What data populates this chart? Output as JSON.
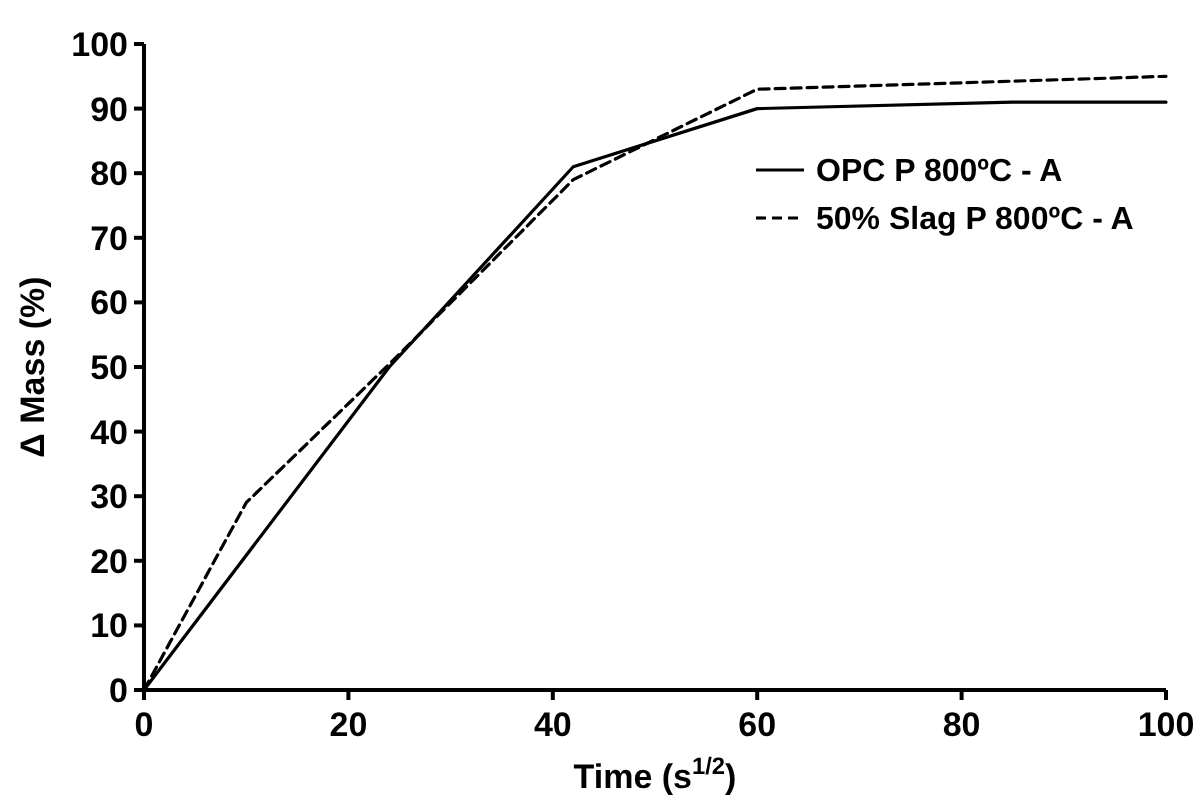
{
  "chart_data": {
    "type": "line",
    "xlabel": "Time (s$^{1/2}$)",
    "ylabel": "Δ Mass (%)",
    "xlim": [
      0,
      100
    ],
    "xticks": [
      0,
      20,
      40,
      60,
      80,
      100
    ],
    "ylim": [
      0,
      100
    ],
    "yticks": [
      0,
      10,
      20,
      30,
      40,
      50,
      60,
      70,
      80,
      90,
      100
    ],
    "grid": false,
    "legend": "top right",
    "marker": "none",
    "series": [
      {
        "name": "OPC P 800ºC - A",
        "color": "#000000",
        "line_style": "solid",
        "x": [
          0,
          24,
          42,
          60,
          85,
          100
        ],
        "values": [
          0,
          50,
          81,
          90,
          91,
          91
        ]
      },
      {
        "name": "50% Slag P 800ºC - A",
        "color": "#000000",
        "line_style": "dashed",
        "x": [
          0,
          10,
          25,
          42,
          60,
          100
        ],
        "values": [
          0,
          29,
          52,
          79,
          93,
          95
        ]
      }
    ]
  }
}
